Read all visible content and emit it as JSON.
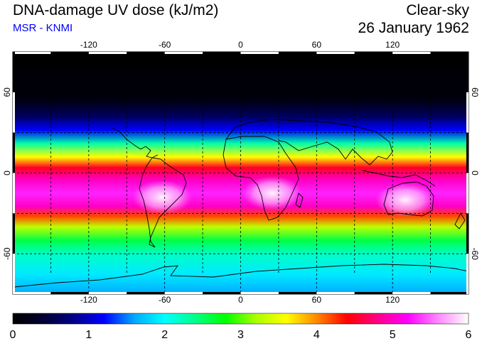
{
  "header": {
    "title": "DNA-damage UV dose (kJ/m2)",
    "subtitle": "MSR - KNMI",
    "sky": "Clear-sky",
    "date": "26 January 1962"
  },
  "colors": {
    "subtitle": "#0000ff",
    "colormap": [
      "#000000",
      "#000033",
      "#000088",
      "#0000ff",
      "#00aaff",
      "#00ffff",
      "#00ff88",
      "#00ff00",
      "#aaff00",
      "#ffff00",
      "#ff8800",
      "#ff0000",
      "#ff0088",
      "#ff00ff",
      "#ff88ff",
      "#ffffff"
    ]
  },
  "map": {
    "lon_ticks": [
      "-120",
      "-60",
      "0",
      "60",
      "120"
    ],
    "lat_ticks_left": [
      "60",
      "0",
      "-60"
    ],
    "lat_ticks_right": [
      "60",
      "0",
      "-60"
    ],
    "lon_values": [
      -120,
      -60,
      0,
      60,
      120
    ],
    "lat_values": [
      60,
      0,
      -60
    ],
    "lon_range": [
      -180,
      180
    ],
    "lat_range": [
      -90,
      90
    ],
    "bands": [
      {
        "lat": 90,
        "value": 0.0
      },
      {
        "lat": 55,
        "value": 0.1
      },
      {
        "lat": 42,
        "value": 0.6
      },
      {
        "lat": 32,
        "value": 1.2
      },
      {
        "lat": 22,
        "value": 2.3
      },
      {
        "lat": 12,
        "value": 3.6
      },
      {
        "lat": 4,
        "value": 4.5
      },
      {
        "lat": -5,
        "value": 5.0
      },
      {
        "lat": -15,
        "value": 5.3
      },
      {
        "lat": -25,
        "value": 5.0
      },
      {
        "lat": -32,
        "value": 4.2
      },
      {
        "lat": -40,
        "value": 3.3
      },
      {
        "lat": -50,
        "value": 2.6
      },
      {
        "lat": -60,
        "value": 2.2
      },
      {
        "lat": -75,
        "value": 1.9
      },
      {
        "lat": -90,
        "value": 1.6
      }
    ],
    "hotspots": [
      {
        "name": "south-america",
        "lon": -62,
        "lat": -18,
        "value": 5.9
      },
      {
        "name": "southern-africa",
        "lon": 25,
        "lat": -15,
        "value": 5.8
      },
      {
        "name": "australia",
        "lon": 130,
        "lat": -20,
        "value": 5.9
      }
    ]
  },
  "colorbar": {
    "labels": [
      "0",
      "1",
      "2",
      "3",
      "4",
      "5",
      "6"
    ],
    "min": 0,
    "max": 6
  }
}
